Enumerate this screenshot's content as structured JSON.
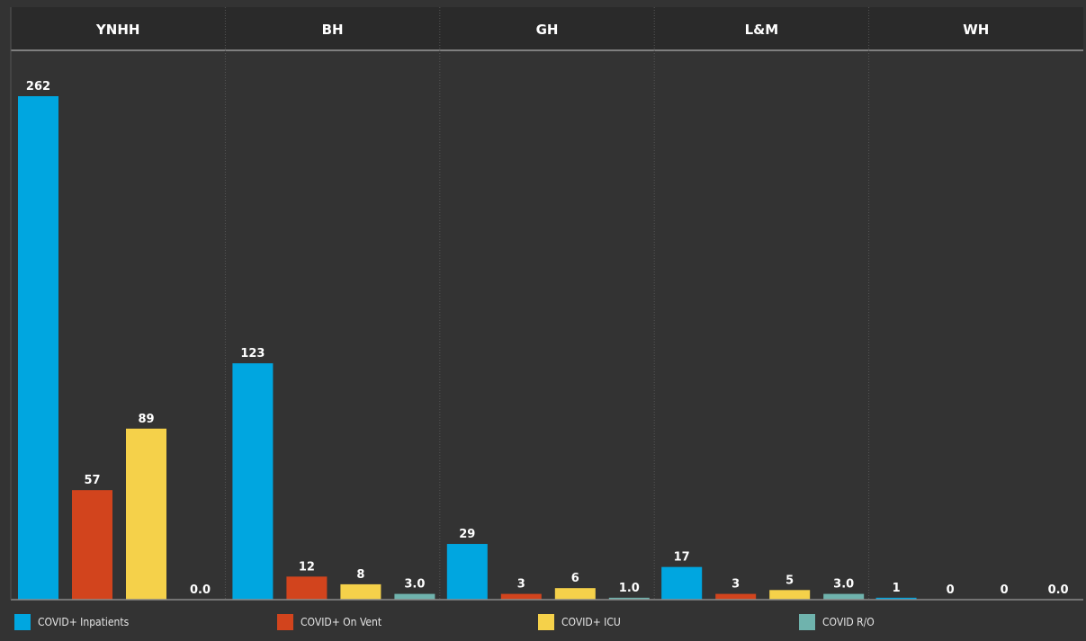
{
  "chart_data": {
    "type": "bar",
    "categories": [
      "YNHH",
      "BH",
      "GH",
      "L&M",
      "WH"
    ],
    "series": [
      {
        "name": "COVID+ Inpatients",
        "color": "#00a6e0",
        "values": [
          262,
          123,
          29,
          17,
          1
        ],
        "labels": [
          "262",
          "123",
          "29",
          "17",
          "1"
        ]
      },
      {
        "name": "COVID+ On Vent",
        "color": "#d2441d",
        "values": [
          57,
          12,
          3,
          3,
          0
        ],
        "labels": [
          "57",
          "12",
          "3",
          "3",
          "0"
        ]
      },
      {
        "name": "COVID+ ICU",
        "color": "#f5d14a",
        "values": [
          89,
          8,
          6,
          5,
          0
        ],
        "labels": [
          "89",
          "8",
          "6",
          "5",
          "0"
        ]
      },
      {
        "name": "COVID R/O",
        "color": "#6fb3ad",
        "values": [
          0.0,
          3.0,
          1.0,
          3.0,
          0.0
        ],
        "labels": [
          "0.0",
          "3.0",
          "1.0",
          "3.0",
          "0.0"
        ]
      }
    ],
    "ylim": [
      0,
      262
    ],
    "legend_position": "bottom",
    "background_color": "#333333"
  }
}
